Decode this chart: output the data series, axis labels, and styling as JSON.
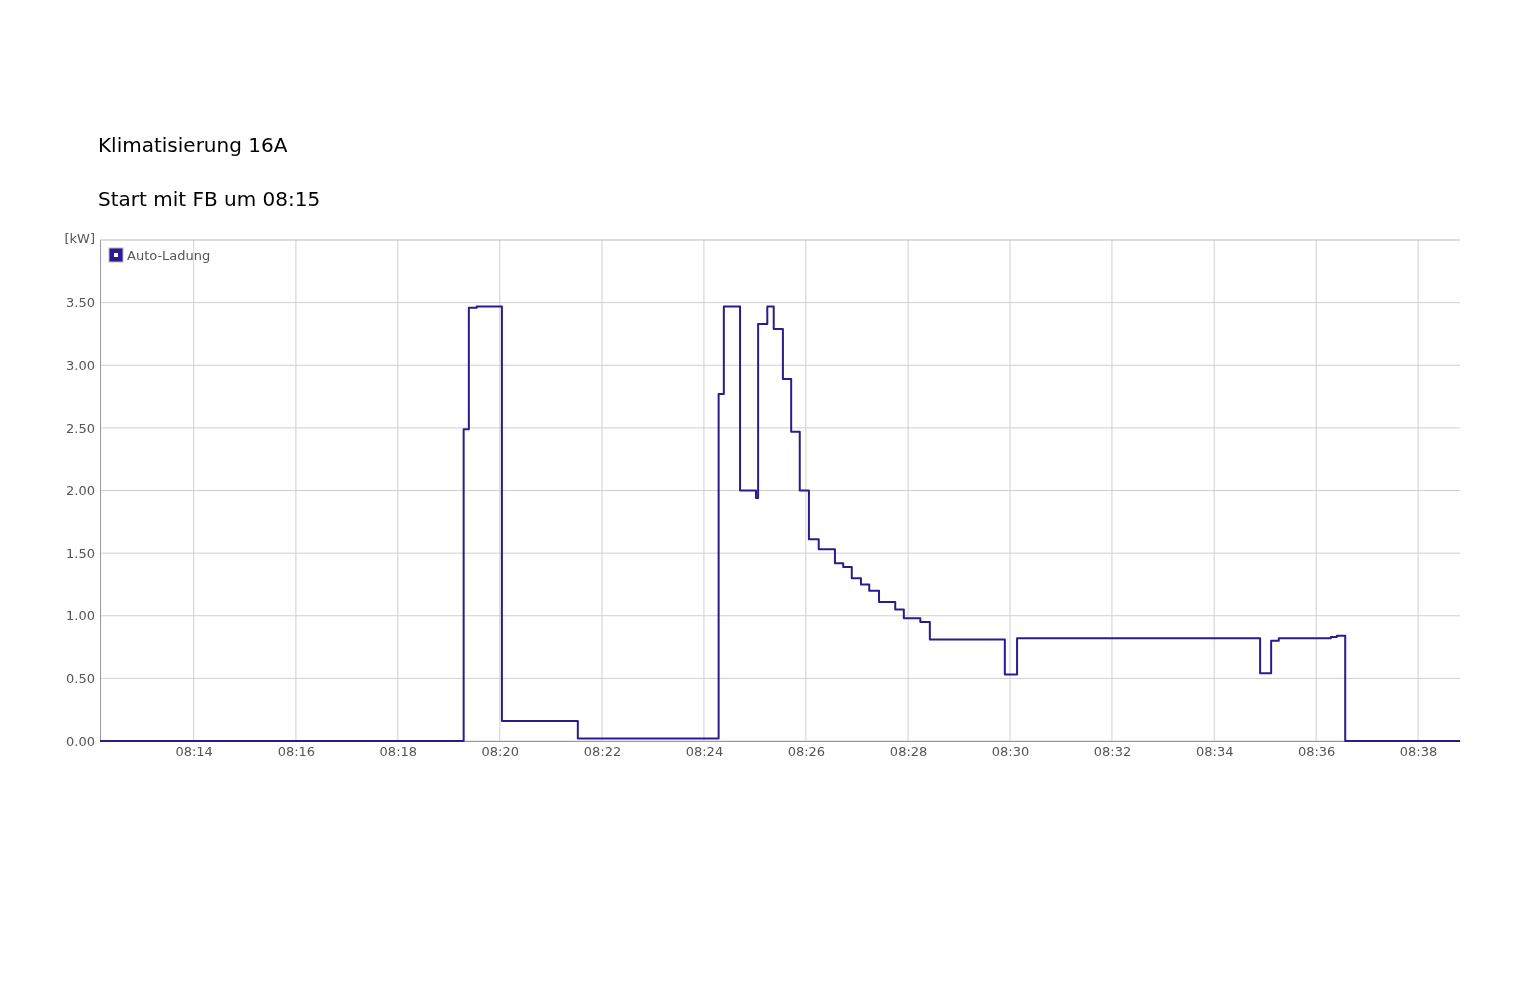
{
  "chart_data": {
    "type": "step",
    "title": "Klimatisierung 16A",
    "subtitle": "Start mit FB um 08:15",
    "ylabel": "[kW]",
    "xlim": [
      8.2027,
      8.647
    ],
    "ylim": [
      0,
      4
    ],
    "xticks": [
      {
        "value": 8.2333,
        "label": "08:14"
      },
      {
        "value": 8.2667,
        "label": "08:16"
      },
      {
        "value": 8.3,
        "label": "08:18"
      },
      {
        "value": 8.3333,
        "label": "08:20"
      },
      {
        "value": 8.3667,
        "label": "08:22"
      },
      {
        "value": 8.4,
        "label": "08:24"
      },
      {
        "value": 8.4333,
        "label": "08:26"
      },
      {
        "value": 8.4667,
        "label": "08:28"
      },
      {
        "value": 8.5,
        "label": "08:30"
      },
      {
        "value": 8.5333,
        "label": "08:32"
      },
      {
        "value": 8.5667,
        "label": "08:34"
      },
      {
        "value": 8.6,
        "label": "08:36"
      },
      {
        "value": 8.6333,
        "label": "08:38"
      }
    ],
    "yticks": [
      {
        "value": 0,
        "label": "0.00"
      },
      {
        "value": 0.5,
        "label": "0.50"
      },
      {
        "value": 1,
        "label": "1.00"
      },
      {
        "value": 1.5,
        "label": "1.50"
      },
      {
        "value": 2,
        "label": "2.00"
      },
      {
        "value": 2.5,
        "label": "2.50"
      },
      {
        "value": 3,
        "label": "3.00"
      },
      {
        "value": 3.5,
        "label": "3.50"
      }
    ],
    "grid": true,
    "legend": "top left",
    "series": [
      {
        "name": "Auto-Ladung",
        "color": "#2e1a8c",
        "x": [
          8.2027,
          8.3215,
          8.3232,
          8.3258,
          8.334,
          8.3588,
          8.4048,
          8.4065,
          8.4118,
          8.417,
          8.4177,
          8.4207,
          8.4228,
          8.4258,
          8.4285,
          8.4313,
          8.4343,
          8.4375,
          8.4428,
          8.4455,
          8.4483,
          8.4513,
          8.454,
          8.4572,
          8.4625,
          8.4653,
          8.4707,
          8.4738,
          8.4983,
          8.5023,
          8.5817,
          8.5853,
          8.5878,
          8.6048,
          8.6068,
          8.6095,
          8.647
        ],
        "values": [
          0,
          2.49,
          3.46,
          3.47,
          0.16,
          0.02,
          2.77,
          3.47,
          2.0,
          1.94,
          3.33,
          3.47,
          3.29,
          2.89,
          2.47,
          2.0,
          1.61,
          1.53,
          1.42,
          1.39,
          1.3,
          1.25,
          1.2,
          1.11,
          1.05,
          0.98,
          0.95,
          0.81,
          0.53,
          0.82,
          0.54,
          0.8,
          0.82,
          0.83,
          0.84,
          0,
          0
        ]
      }
    ]
  }
}
